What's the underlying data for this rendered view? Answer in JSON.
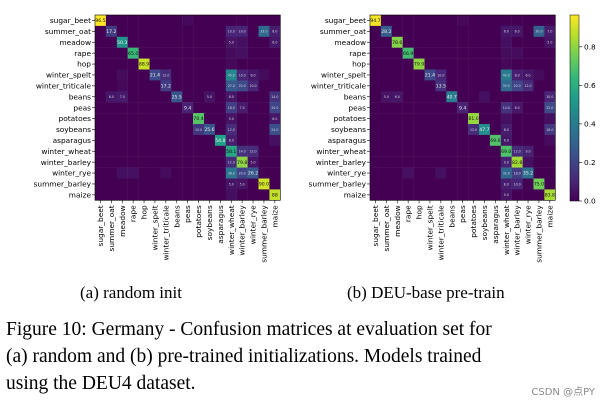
{
  "chart_data": [
    {
      "type": "heatmap",
      "categories": [
        "sugar_beet",
        "summer_oat",
        "meadow",
        "rape",
        "hop",
        "winter_spelt",
        "winter_triticale",
        "beans",
        "peas",
        "potatoes",
        "soybeans",
        "asparagus",
        "winter_wheat",
        "winter_barley",
        "winter_rye",
        "summer_barley",
        "maize"
      ],
      "diagonal_labels": [
        "96.5",
        "17.2",
        "50.3",
        "65.0",
        "88.9",
        "21.4",
        "17.2",
        "25.5",
        "9.4",
        "70.4",
        "25.6",
        "54.8",
        "58.1",
        "79.8",
        "26.2",
        "90.0",
        "88"
      ],
      "diagonal": [
        0.965,
        0.172,
        0.503,
        0.65,
        0.889,
        0.214,
        0.172,
        0.255,
        0.094,
        0.704,
        0.256,
        0.548,
        0.581,
        0.798,
        0.262,
        0.9,
        0.88
      ],
      "off_diagonal": [
        {
          "row": 0,
          "col": 8,
          "v": 0.02
        },
        {
          "row": 1,
          "col": 12,
          "v": 0.1
        },
        {
          "row": 1,
          "col": 13,
          "v": 0.1
        },
        {
          "row": 1,
          "col": 15,
          "v": 0.33
        },
        {
          "row": 1,
          "col": 16,
          "v": 0.08
        },
        {
          "row": 2,
          "col": 12,
          "v": 0.05
        },
        {
          "row": 2,
          "col": 13,
          "v": 0.04
        },
        {
          "row": 2,
          "col": 16,
          "v": 0.06
        },
        {
          "row": 3,
          "col": 12,
          "v": 0.03
        },
        {
          "row": 3,
          "col": 13,
          "v": 0.04
        },
        {
          "row": 4,
          "col": 12,
          "v": 0.02
        },
        {
          "row": 5,
          "col": 2,
          "v": 0.03
        },
        {
          "row": 5,
          "col": 6,
          "v": 0.12
        },
        {
          "row": 5,
          "col": 12,
          "v": 0.45
        },
        {
          "row": 5,
          "col": 13,
          "v": 0.1
        },
        {
          "row": 5,
          "col": 14,
          "v": 0.06
        },
        {
          "row": 5,
          "col": 15,
          "v": 0.03
        },
        {
          "row": 6,
          "col": 2,
          "v": 0.02
        },
        {
          "row": 6,
          "col": 12,
          "v": 0.27
        },
        {
          "row": 6,
          "col": 13,
          "v": 0.22
        },
        {
          "row": 6,
          "col": 14,
          "v": 0.1
        },
        {
          "row": 7,
          "col": 1,
          "v": 0.06
        },
        {
          "row": 7,
          "col": 2,
          "v": 0.07
        },
        {
          "row": 7,
          "col": 10,
          "v": 0.05
        },
        {
          "row": 7,
          "col": 12,
          "v": 0.06
        },
        {
          "row": 7,
          "col": 16,
          "v": 0.14
        },
        {
          "row": 8,
          "col": 12,
          "v": 0.18
        },
        {
          "row": 8,
          "col": 13,
          "v": 0.07
        },
        {
          "row": 8,
          "col": 16,
          "v": 0.2
        },
        {
          "row": 9,
          "col": 12,
          "v": 0.05
        },
        {
          "row": 9,
          "col": 16,
          "v": 0.06
        },
        {
          "row": 10,
          "col": 9,
          "v": 0.15
        },
        {
          "row": 10,
          "col": 12,
          "v": 0.12
        },
        {
          "row": 10,
          "col": 16,
          "v": 0.24
        },
        {
          "row": 11,
          "col": 12,
          "v": 0.08
        },
        {
          "row": 11,
          "col": 16,
          "v": 0.04
        },
        {
          "row": 12,
          "col": 13,
          "v": 0.14
        },
        {
          "row": 12,
          "col": 14,
          "v": 0.12
        },
        {
          "row": 13,
          "col": 12,
          "v": 0.12
        },
        {
          "row": 13,
          "col": 14,
          "v": 0.05
        },
        {
          "row": 14,
          "col": 2,
          "v": 0.04
        },
        {
          "row": 14,
          "col": 3,
          "v": 0.04
        },
        {
          "row": 14,
          "col": 6,
          "v": 0.03
        },
        {
          "row": 14,
          "col": 12,
          "v": 0.38
        },
        {
          "row": 14,
          "col": 13,
          "v": 0.2
        },
        {
          "row": 15,
          "col": 12,
          "v": 0.05
        },
        {
          "row": 15,
          "col": 13,
          "v": 0.05
        },
        {
          "row": 16,
          "col": 12,
          "v": 0.04
        }
      ]
    },
    {
      "type": "heatmap",
      "categories": [
        "sugar_beet",
        "summer_oat",
        "meadow",
        "rape",
        "hop",
        "winter_spelt",
        "winter_triticale",
        "beans",
        "peas",
        "potatoes",
        "soybeans",
        "asparagus",
        "winter_wheat",
        "winter_barley",
        "winter_rye",
        "summer_barley",
        "maize"
      ],
      "diagonal_labels": [
        "94.7",
        "28.2",
        "78.6",
        "66.9",
        "79.9",
        "21.4",
        "13.5",
        "40.7",
        "9.4",
        "81.0",
        "47.7",
        "69.6",
        "69.0",
        "82.8",
        "35.2",
        "75.0",
        "83.8"
      ],
      "diagonal": [
        0.947,
        0.282,
        0.786,
        0.669,
        0.799,
        0.214,
        0.135,
        0.407,
        0.094,
        0.81,
        0.477,
        0.696,
        0.69,
        0.828,
        0.352,
        0.75,
        0.838
      ],
      "off_diagonal": [
        {
          "row": 0,
          "col": 8,
          "v": 0.02
        },
        {
          "row": 1,
          "col": 12,
          "v": 0.06
        },
        {
          "row": 1,
          "col": 13,
          "v": 0.06
        },
        {
          "row": 1,
          "col": 15,
          "v": 0.3
        },
        {
          "row": 1,
          "col": 16,
          "v": 0.07
        },
        {
          "row": 2,
          "col": 12,
          "v": 0.04
        },
        {
          "row": 2,
          "col": 16,
          "v": 0.05
        },
        {
          "row": 3,
          "col": 12,
          "v": 0.03
        },
        {
          "row": 3,
          "col": 13,
          "v": 0.03
        },
        {
          "row": 4,
          "col": 12,
          "v": 0.02
        },
        {
          "row": 5,
          "col": 6,
          "v": 0.1
        },
        {
          "row": 5,
          "col": 12,
          "v": 0.4
        },
        {
          "row": 5,
          "col": 13,
          "v": 0.08
        },
        {
          "row": 5,
          "col": 14,
          "v": 0.06
        },
        {
          "row": 5,
          "col": 15,
          "v": 0.03
        },
        {
          "row": 6,
          "col": 12,
          "v": 0.33
        },
        {
          "row": 6,
          "col": 13,
          "v": 0.2
        },
        {
          "row": 6,
          "col": 14,
          "v": 0.12
        },
        {
          "row": 7,
          "col": 1,
          "v": 0.05
        },
        {
          "row": 7,
          "col": 2,
          "v": 0.06
        },
        {
          "row": 7,
          "col": 10,
          "v": 0.04
        },
        {
          "row": 7,
          "col": 16,
          "v": 0.1
        },
        {
          "row": 8,
          "col": 12,
          "v": 0.14
        },
        {
          "row": 8,
          "col": 13,
          "v": 0.06
        },
        {
          "row": 8,
          "col": 16,
          "v": 0.22
        },
        {
          "row": 9,
          "col": 12,
          "v": 0.04
        },
        {
          "row": 9,
          "col": 16,
          "v": 0.04
        },
        {
          "row": 10,
          "col": 9,
          "v": 0.12
        },
        {
          "row": 10,
          "col": 12,
          "v": 0.08
        },
        {
          "row": 10,
          "col": 16,
          "v": 0.16
        },
        {
          "row": 11,
          "col": 12,
          "v": 0.06
        },
        {
          "row": 11,
          "col": 16,
          "v": 0.03
        },
        {
          "row": 12,
          "col": 13,
          "v": 0.12
        },
        {
          "row": 12,
          "col": 14,
          "v": 0.09
        },
        {
          "row": 13,
          "col": 12,
          "v": 0.09
        },
        {
          "row": 13,
          "col": 14,
          "v": 0.04
        },
        {
          "row": 14,
          "col": 3,
          "v": 0.04
        },
        {
          "row": 14,
          "col": 6,
          "v": 0.04
        },
        {
          "row": 14,
          "col": 12,
          "v": 0.32
        },
        {
          "row": 14,
          "col": 13,
          "v": 0.18
        },
        {
          "row": 15,
          "col": 12,
          "v": 0.08
        },
        {
          "row": 15,
          "col": 13,
          "v": 0.1
        },
        {
          "row": 16,
          "col": 12,
          "v": 0.05
        }
      ]
    }
  ],
  "colorbar": {
    "ticks": [
      "0.0",
      "0.2",
      "0.4",
      "0.6",
      "0.8"
    ],
    "tick_values": [
      0,
      0.2,
      0.4,
      0.6,
      0.8
    ],
    "vmin": 0,
    "vmax": 0.965,
    "colormap": "viridis",
    "colors": [
      "#440154",
      "#482878",
      "#3e4989",
      "#31688e",
      "#26828e",
      "#1f9e89",
      "#35b779",
      "#6ece58",
      "#b5de2b",
      "#fde725"
    ]
  },
  "subcaptions": {
    "a": "(a) random init",
    "b": "(b) DEU-base pre-train"
  },
  "caption": {
    "line1": "Figure 10: Germany - Confusion matrices at evaluation set for",
    "line2": "(a) random and (b) pre-trained initializations. Models trained",
    "line3": "using the DEU4 dataset."
  },
  "watermark": "CSDN @点PY"
}
